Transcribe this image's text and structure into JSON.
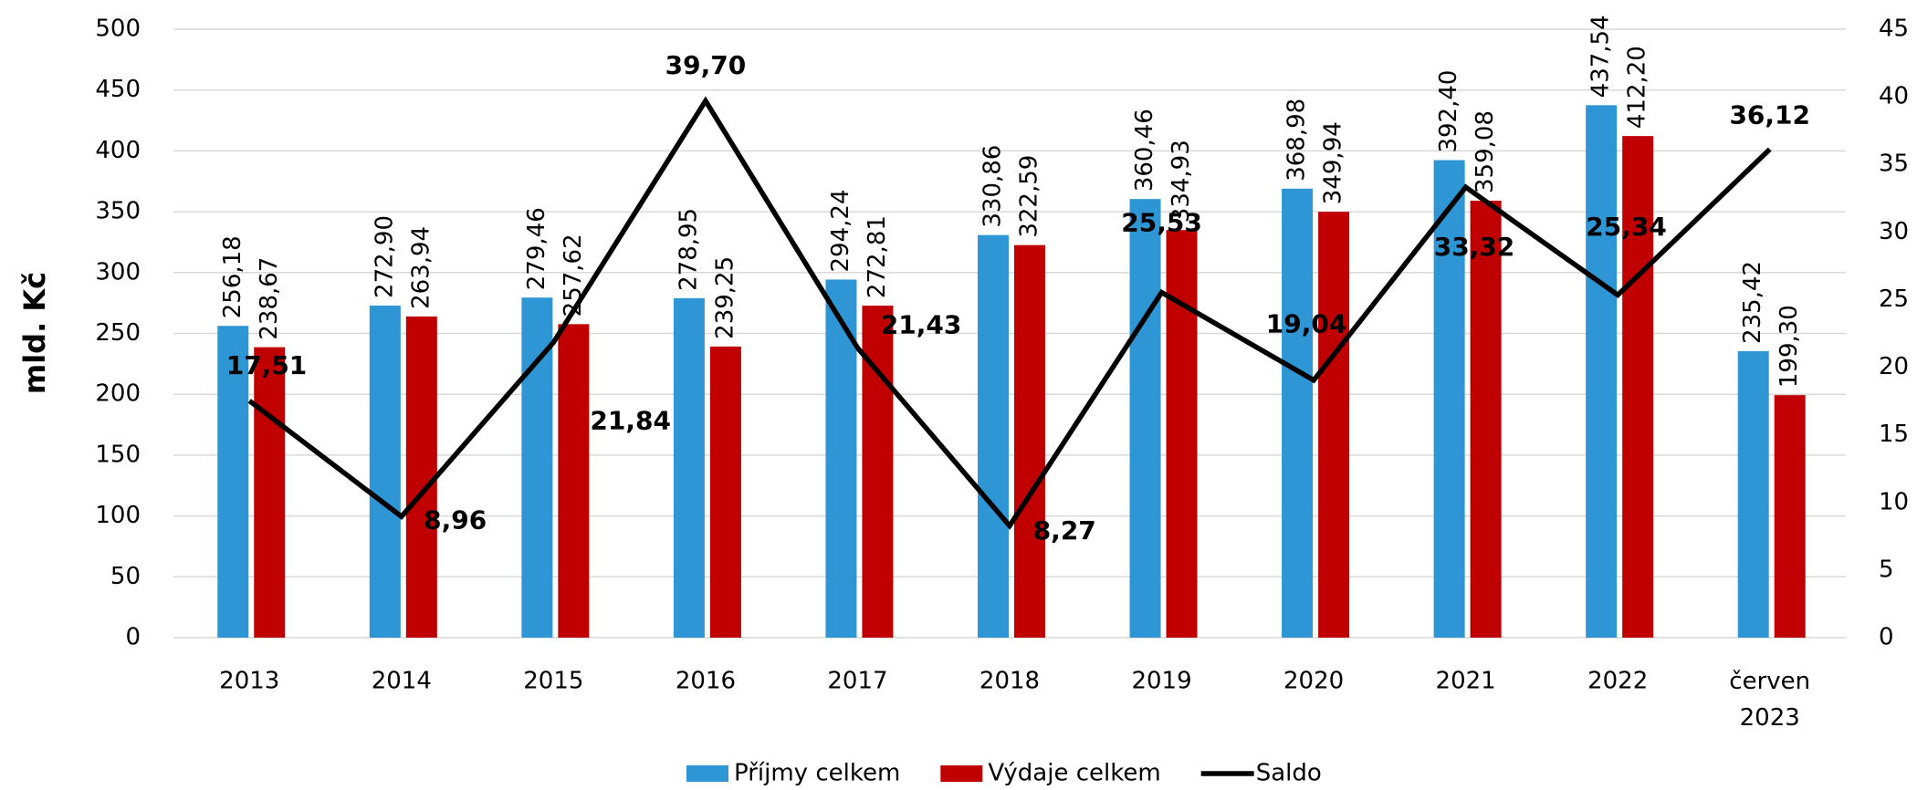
{
  "chart_data": {
    "type": "bar",
    "y_label": "mld. Kč",
    "categories": [
      "2013",
      "2014",
      "2015",
      "2016",
      "2017",
      "2018",
      "2019",
      "2020",
      "2021",
      "2022",
      "červen 2023"
    ],
    "series": [
      {
        "name": "Příjmy celkem",
        "type": "bar",
        "color": "#2e96d4",
        "values": [
          256.18,
          272.9,
          279.46,
          278.95,
          294.24,
          330.86,
          360.46,
          368.98,
          392.4,
          437.54,
          235.42
        ],
        "value_labels": [
          "256,18",
          "272,90",
          "279,46",
          "278,95",
          "294,24",
          "330,86",
          "360,46",
          "368,98",
          "392,40",
          "437,54",
          "235,42"
        ]
      },
      {
        "name": "Výdaje celkem",
        "type": "bar",
        "color": "#c00000",
        "values": [
          238.67,
          263.94,
          257.62,
          239.25,
          272.81,
          322.59,
          334.93,
          349.94,
          359.08,
          412.2,
          199.3
        ],
        "value_labels": [
          "238,67",
          "263,94",
          "257,62",
          "239,25",
          "272,81",
          "322,59",
          "334,93",
          "349,94",
          "359,08",
          "412,20",
          "199,30"
        ]
      },
      {
        "name": "Saldo",
        "type": "line",
        "axis": "y2",
        "color": "#000000",
        "values": [
          17.51,
          8.96,
          21.84,
          39.7,
          21.43,
          8.27,
          25.53,
          19.04,
          33.32,
          25.34,
          36.12
        ],
        "value_labels": [
          "17,51",
          "8,96",
          "21,84",
          "39,70",
          "21,43",
          "8,27",
          "25,53",
          "19,04",
          "33,32",
          "25,34",
          "36,12"
        ]
      }
    ],
    "ylim": [
      0,
      500
    ],
    "yticks": [
      0,
      50,
      100,
      150,
      200,
      250,
      300,
      350,
      400,
      450,
      500
    ],
    "y2lim": [
      0,
      45
    ],
    "y2ticks": [
      0,
      5,
      10,
      15,
      20,
      25,
      30,
      35,
      40,
      45
    ],
    "grid": true,
    "legend": "bottom"
  }
}
